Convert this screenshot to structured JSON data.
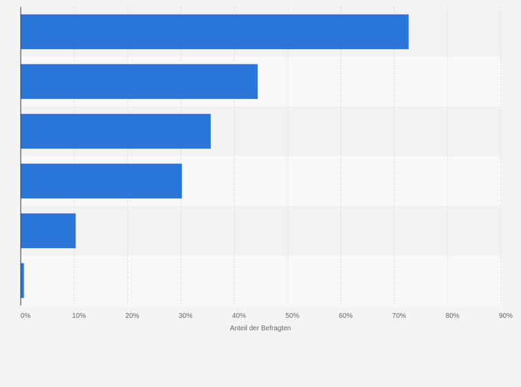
{
  "chart_data": {
    "type": "bar",
    "orientation": "horizontal",
    "categories": [
      "",
      "",
      "",
      "",
      "",
      ""
    ],
    "values": [
      72.7,
      44.4,
      35.6,
      30.2,
      10.3,
      0.6
    ],
    "xlabel": "Anteil der Befragten",
    "ylabel": "",
    "xlim": [
      0,
      90
    ],
    "x_ticks": [
      0,
      10,
      20,
      30,
      40,
      50,
      60,
      70,
      80,
      90
    ],
    "x_tick_labels": [
      "0%",
      "10%",
      "20%",
      "30%",
      "40%",
      "50%",
      "60%",
      "70%",
      "80%",
      "90%"
    ],
    "grid": "vertical, dashed",
    "bar_color": "#2a75d9",
    "band_colors": [
      "#f2f2f2",
      "#f8f8f8"
    ],
    "background_color": "#f4f4f4",
    "axis_line_color": "#333333",
    "tick_text_color": "#666666"
  }
}
